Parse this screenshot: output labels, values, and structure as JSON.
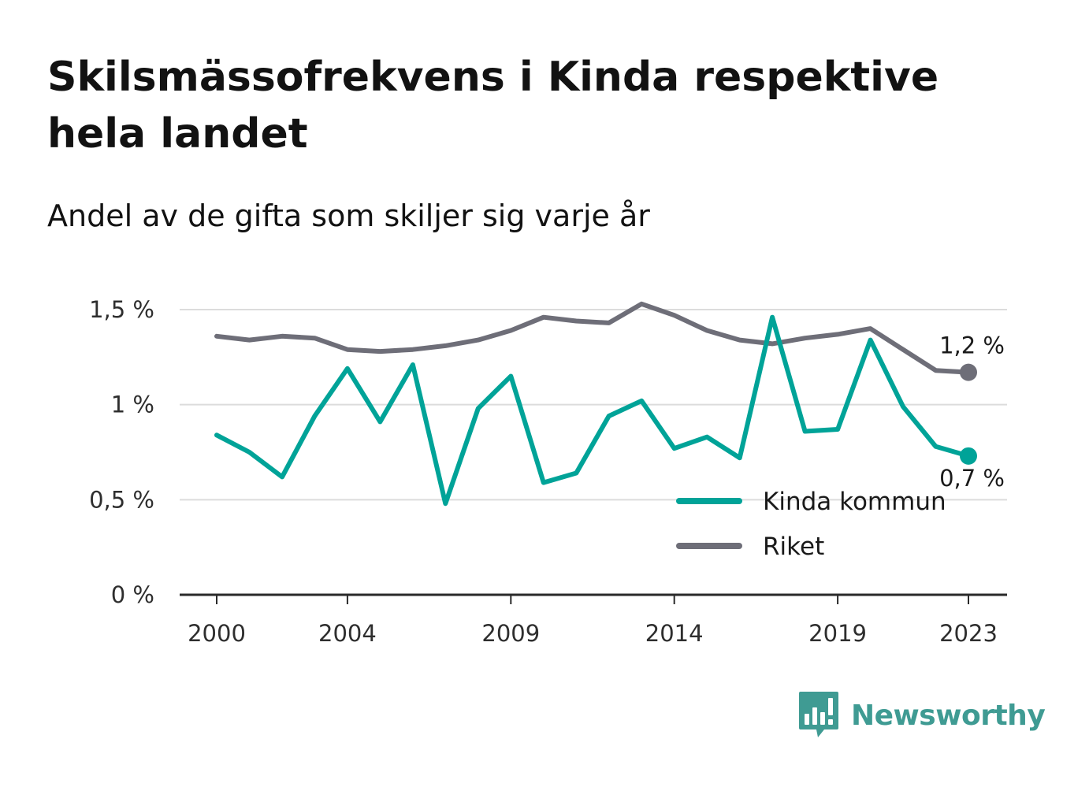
{
  "header": {
    "title": "Skilsmässofrekvens i Kinda respektive hela landet",
    "subtitle": "Andel av de gifta som skiljer sig varje år"
  },
  "brand": {
    "name": "Newsworthy",
    "icon": "bar-chart-speech-bubble-icon",
    "color": "#3f9b93"
  },
  "chart_data": {
    "type": "line",
    "x": [
      2000,
      2001,
      2002,
      2003,
      2004,
      2005,
      2006,
      2007,
      2008,
      2009,
      2010,
      2011,
      2012,
      2013,
      2014,
      2015,
      2016,
      2017,
      2018,
      2019,
      2020,
      2021,
      2022,
      2023
    ],
    "x_tick_labels": [
      "2000",
      "2004",
      "2009",
      "2014",
      "2019",
      "2023"
    ],
    "x_ticks": [
      2000,
      2004,
      2009,
      2014,
      2019,
      2023
    ],
    "y_tick_labels": [
      "0 %",
      "0,5 %",
      "1 %",
      "1,5 %"
    ],
    "y_ticks": [
      0,
      0.5,
      1.0,
      1.5
    ],
    "ylim": [
      0,
      1.5
    ],
    "grid": true,
    "legend_position": "bottom-right",
    "series": [
      {
        "name": "Kinda kommun",
        "color": "#00a398",
        "values": [
          0.84,
          0.75,
          0.62,
          0.94,
          1.19,
          0.91,
          1.21,
          0.48,
          0.98,
          1.15,
          0.59,
          0.64,
          0.94,
          1.02,
          0.77,
          0.83,
          0.72,
          1.46,
          0.86,
          0.87,
          1.34,
          0.99,
          0.78,
          0.73
        ],
        "end_label": "0,7 %"
      },
      {
        "name": "Riket",
        "color": "#6e6e78",
        "values": [
          1.36,
          1.34,
          1.36,
          1.35,
          1.29,
          1.28,
          1.29,
          1.31,
          1.34,
          1.39,
          1.46,
          1.44,
          1.43,
          1.53,
          1.47,
          1.39,
          1.34,
          1.32,
          1.35,
          1.37,
          1.4,
          1.29,
          1.18,
          1.17
        ],
        "end_label": "1,2 %"
      }
    ]
  }
}
